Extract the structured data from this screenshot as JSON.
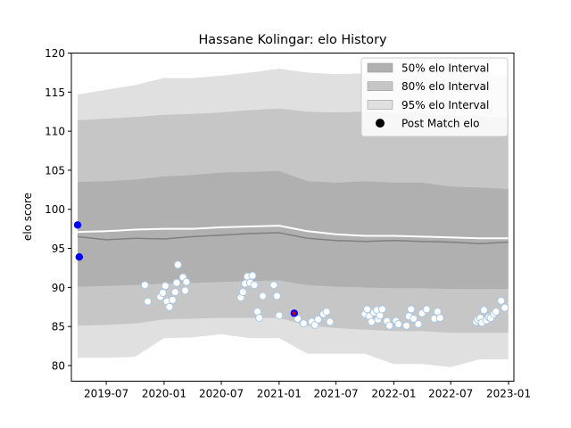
{
  "chart_data": {
    "type": "line",
    "title": "Hassane Kolingar: elo History",
    "xlabel": "",
    "ylabel": "elo score",
    "ylim": [
      78,
      120
    ],
    "xlim": [
      "2019-03-12",
      "2023-01-18"
    ],
    "yticks": [
      80,
      85,
      90,
      95,
      100,
      105,
      110,
      115,
      120
    ],
    "xticks": [
      "2019-07",
      "2020-01",
      "2020-07",
      "2021-01",
      "2021-07",
      "2022-01",
      "2022-07",
      "2023-01"
    ],
    "legend_position": "top-right",
    "legend": [
      {
        "label": "50% elo Interval",
        "swatch": "band",
        "color": "#b0b0b0"
      },
      {
        "label": "80% elo Interval",
        "swatch": "band",
        "color": "#c6c6c6"
      },
      {
        "label": "95% elo Interval",
        "swatch": "band",
        "color": "#e0e0e0"
      },
      {
        "label": "Post Match elo",
        "swatch": "dot",
        "color": "#000000"
      }
    ],
    "x": [
      "2019-04-01",
      "2019-07-01",
      "2019-10-01",
      "2020-01-01",
      "2020-04-01",
      "2020-07-01",
      "2020-10-01",
      "2021-01-01",
      "2021-04-01",
      "2021-07-01",
      "2021-10-01",
      "2022-01-01",
      "2022-04-01",
      "2022-07-01",
      "2022-10-01",
      "2022-12-31"
    ],
    "bands": {
      "p95": {
        "lower": [
          81.0,
          81.0,
          81.1,
          83.5,
          83.6,
          84.0,
          83.5,
          83.5,
          81.5,
          81.5,
          81.5,
          80.2,
          80.2,
          79.8,
          80.8,
          80.8
        ],
        "upper": [
          114.7,
          115.3,
          115.9,
          116.8,
          116.8,
          117.1,
          117.5,
          118.0,
          117.5,
          117.3,
          117.4,
          117.8,
          117.8,
          117.8,
          117.5,
          117.0
        ]
      },
      "p80": {
        "lower": [
          85.1,
          85.2,
          85.4,
          85.9,
          86.0,
          86.1,
          86.1,
          86.1,
          85.1,
          84.8,
          84.6,
          84.4,
          84.4,
          84.2,
          84.2,
          84.2
        ],
        "upper": [
          111.4,
          111.6,
          111.8,
          112.1,
          112.2,
          112.4,
          112.7,
          112.9,
          112.5,
          112.4,
          112.5,
          112.3,
          112.4,
          112.0,
          111.9,
          111.7
        ]
      },
      "p50": {
        "lower": [
          90.1,
          90.2,
          90.3,
          90.5,
          90.6,
          90.7,
          90.8,
          90.9,
          90.3,
          90.1,
          90.0,
          89.9,
          89.9,
          89.8,
          89.8,
          89.8
        ],
        "upper": [
          103.5,
          103.6,
          103.8,
          104.2,
          104.4,
          104.7,
          104.8,
          104.9,
          103.6,
          103.4,
          103.6,
          103.4,
          103.4,
          102.9,
          102.8,
          102.6
        ]
      }
    },
    "series": [
      {
        "values": [
          96.5,
          96.1,
          96.3,
          96.2,
          96.5,
          96.7,
          96.9,
          97.0,
          96.3,
          96.0,
          95.9,
          96.0,
          95.9,
          95.8,
          95.6,
          95.8
        ],
        "color": "#808080"
      },
      {
        "values": [
          97.1,
          97.2,
          97.4,
          97.5,
          97.5,
          97.7,
          97.8,
          97.9,
          97.2,
          96.8,
          96.6,
          96.6,
          96.5,
          96.4,
          96.3,
          96.3
        ],
        "color": "#ffffff"
      }
    ],
    "post_match": [
      [
        "2019-11-01",
        90.3
      ],
      [
        "2019-11-10",
        88.2
      ],
      [
        "2019-12-20",
        88.8
      ],
      [
        "2019-12-28",
        89.3
      ],
      [
        "2020-01-05",
        90.2
      ],
      [
        "2020-01-10",
        88.2
      ],
      [
        "2020-01-18",
        87.5
      ],
      [
        "2020-01-28",
        88.4
      ],
      [
        "2020-02-05",
        89.4
      ],
      [
        "2020-02-10",
        90.6
      ],
      [
        "2020-02-14",
        92.9
      ],
      [
        "2020-03-01",
        91.3
      ],
      [
        "2020-03-08",
        89.6
      ],
      [
        "2020-03-12",
        90.7
      ],
      [
        "2020-09-01",
        88.7
      ],
      [
        "2020-09-08",
        89.4
      ],
      [
        "2020-09-15",
        90.5
      ],
      [
        "2020-09-22",
        91.4
      ],
      [
        "2020-10-01",
        90.6
      ],
      [
        "2020-10-08",
        91.5
      ],
      [
        "2020-10-14",
        90.3
      ],
      [
        "2020-10-24",
        86.9
      ],
      [
        "2020-10-30",
        86.1
      ],
      [
        "2020-11-10",
        88.9
      ],
      [
        "2020-12-15",
        90.3
      ],
      [
        "2020-12-25",
        88.9
      ],
      [
        "2021-01-01",
        86.4
      ],
      [
        "2021-03-01",
        86.0
      ],
      [
        "2021-03-20",
        85.4
      ],
      [
        "2021-04-15",
        85.6
      ],
      [
        "2021-04-25",
        85.2
      ],
      [
        "2021-05-05",
        85.9
      ],
      [
        "2021-05-22",
        86.6
      ],
      [
        "2021-06-01",
        86.9
      ],
      [
        "2021-06-12",
        85.6
      ],
      [
        "2021-10-01",
        86.6
      ],
      [
        "2021-10-08",
        87.2
      ],
      [
        "2021-10-15",
        86.3
      ],
      [
        "2021-10-22",
        85.6
      ],
      [
        "2021-10-30",
        86.8
      ],
      [
        "2021-11-08",
        87.1
      ],
      [
        "2021-11-12",
        85.9
      ],
      [
        "2021-11-18",
        86.4
      ],
      [
        "2021-11-25",
        87.2
      ],
      [
        "2021-12-10",
        85.7
      ],
      [
        "2021-12-18",
        85.1
      ],
      [
        "2022-01-08",
        85.7
      ],
      [
        "2022-01-15",
        85.3
      ],
      [
        "2022-02-10",
        85.1
      ],
      [
        "2022-02-18",
        86.3
      ],
      [
        "2022-02-25",
        87.2
      ],
      [
        "2022-03-05",
        86.0
      ],
      [
        "2022-03-20",
        85.3
      ],
      [
        "2022-04-01",
        86.7
      ],
      [
        "2022-04-15",
        87.2
      ],
      [
        "2022-05-10",
        86.0
      ],
      [
        "2022-05-20",
        86.9
      ],
      [
        "2022-05-28",
        86.1
      ],
      [
        "2022-09-20",
        85.6
      ],
      [
        "2022-09-25",
        85.9
      ],
      [
        "2022-10-03",
        86.1
      ],
      [
        "2022-10-08",
        85.5
      ],
      [
        "2022-10-15",
        87.1
      ],
      [
        "2022-10-22",
        85.8
      ],
      [
        "2022-10-30",
        86.2
      ],
      [
        "2022-11-05",
        86.1
      ],
      [
        "2022-11-15",
        86.6
      ],
      [
        "2022-11-22",
        86.9
      ],
      [
        "2022-12-08",
        88.3
      ],
      [
        "2022-12-20",
        87.4
      ]
    ],
    "highlight_points": [
      {
        "date": "2019-04-01",
        "elo": 98.0,
        "color": "#0000ff"
      },
      {
        "date": "2019-04-06",
        "elo": 93.9,
        "color": "#0000ff"
      },
      {
        "date": "2021-02-18",
        "elo": 86.7,
        "color": "#0000ff"
      }
    ]
  }
}
